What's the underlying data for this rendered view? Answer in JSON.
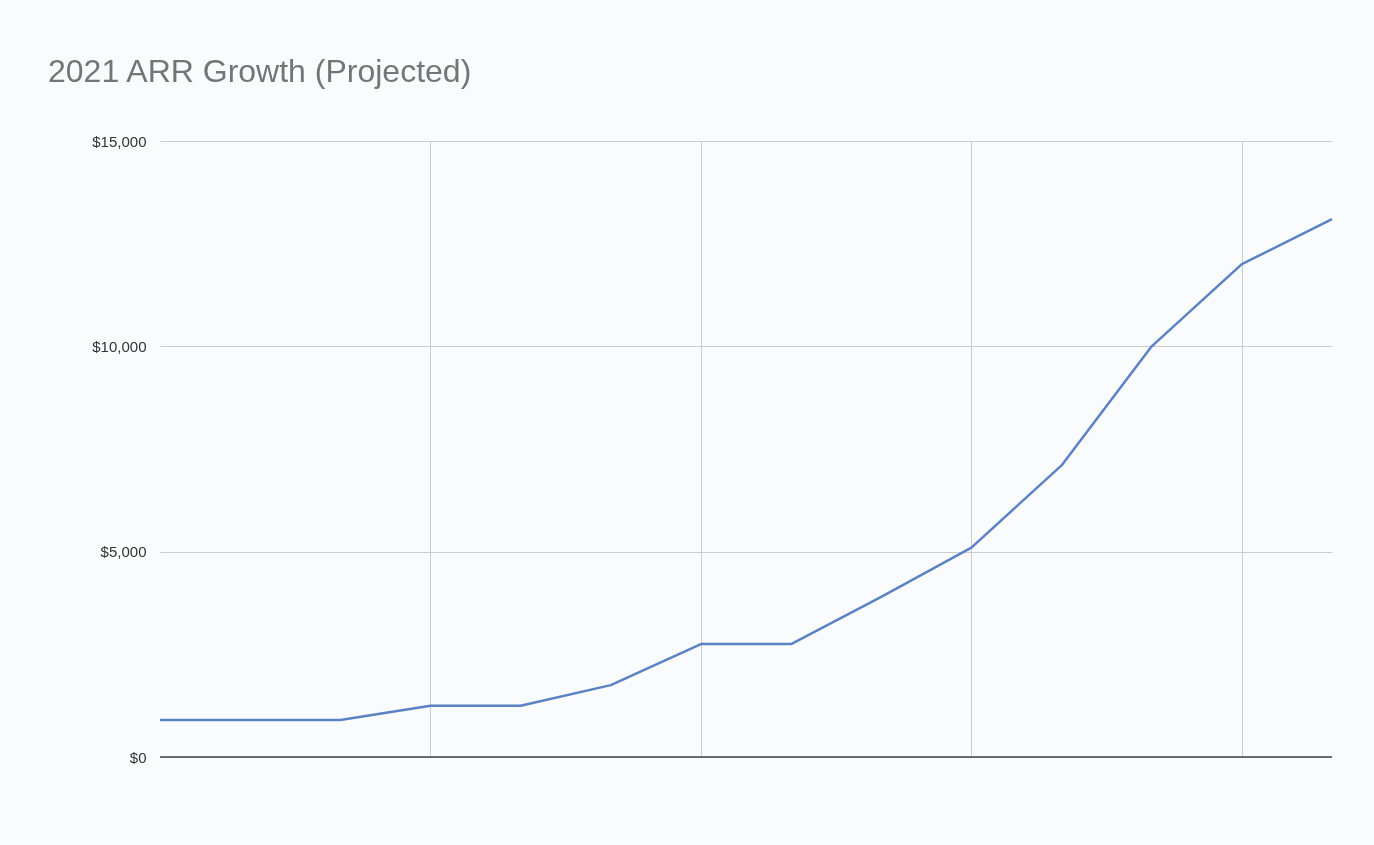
{
  "chart_data": {
    "type": "line",
    "title": "2021 ARR Growth (Projected)",
    "categories": [
      null,
      null,
      null,
      null,
      null,
      null,
      null,
      null,
      null,
      null,
      null,
      null,
      null,
      null
    ],
    "series": [
      {
        "color": "#5b82c4",
        "values": [
          900,
          900,
          900,
          1250,
          1250,
          1750,
          2750,
          2750,
          3900,
          5100,
          7100,
          10000,
          12000,
          13100
        ]
      }
    ],
    "ylim": [
      0,
      15000
    ],
    "yticks": [
      {
        "value": 0,
        "label": "$0"
      },
      {
        "value": 5000,
        "label": "$5,000"
      },
      {
        "value": 10000,
        "label": "$10,000"
      },
      {
        "value": 15000,
        "label": "$15,000"
      }
    ],
    "grid": true,
    "marker": "none",
    "line_style": "solid"
  }
}
